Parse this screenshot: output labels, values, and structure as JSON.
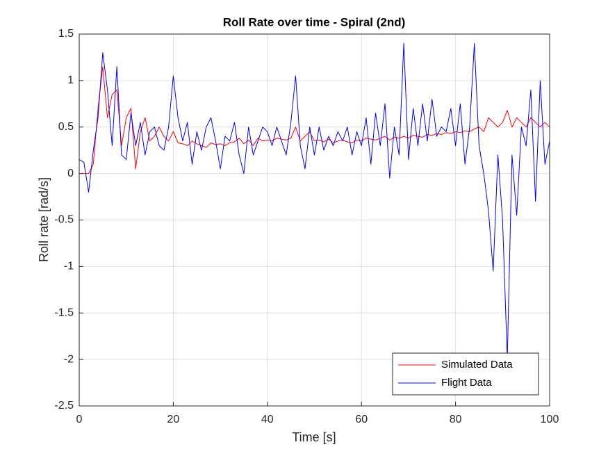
{
  "chart_data": {
    "type": "line",
    "title": "Roll Rate over time - Spiral (2nd)",
    "xlabel": "Time [s]",
    "ylabel": "Roll rate [rad/s]",
    "x": [
      0,
      1,
      2,
      3,
      4,
      5,
      6,
      7,
      8,
      9,
      10,
      11,
      12,
      13,
      14,
      15,
      16,
      17,
      18,
      19,
      20,
      21,
      22,
      23,
      24,
      25,
      26,
      27,
      28,
      29,
      30,
      31,
      32,
      33,
      34,
      35,
      36,
      37,
      38,
      39,
      40,
      41,
      42,
      43,
      44,
      45,
      46,
      47,
      48,
      49,
      50,
      51,
      52,
      53,
      54,
      55,
      56,
      57,
      58,
      59,
      60,
      61,
      62,
      63,
      64,
      65,
      66,
      67,
      68,
      69,
      70,
      71,
      72,
      73,
      74,
      75,
      76,
      77,
      78,
      79,
      80,
      81,
      82,
      83,
      84,
      85,
      86,
      87,
      88,
      89,
      90,
      91,
      92,
      93,
      94,
      95,
      96,
      97,
      98,
      99,
      100
    ],
    "series": [
      {
        "name": "Simulated Data",
        "color": "#ff0000",
        "values": [
          0,
          0,
          0,
          0.1,
          0.7,
          1.15,
          0.6,
          0.85,
          0.9,
          0.3,
          0.6,
          0.7,
          0.05,
          0.45,
          0.6,
          0.35,
          0.4,
          0.5,
          0.4,
          0.35,
          0.45,
          0.33,
          0.32,
          0.3,
          0.35,
          0.32,
          0.3,
          0.28,
          0.33,
          0.31,
          0.32,
          0.3,
          0.33,
          0.34,
          0.38,
          0.32,
          0.36,
          0.3,
          0.38,
          0.35,
          0.36,
          0.35,
          0.38,
          0.37,
          0.36,
          0.38,
          0.5,
          0.35,
          0.4,
          0.45,
          0.35,
          0.36,
          0.34,
          0.37,
          0.33,
          0.35,
          0.36,
          0.34,
          0.33,
          0.36,
          0.35,
          0.38,
          0.37,
          0.36,
          0.38,
          0.4,
          0.36,
          0.39,
          0.38,
          0.4,
          0.38,
          0.41,
          0.4,
          0.39,
          0.42,
          0.41,
          0.43,
          0.42,
          0.44,
          0.43,
          0.45,
          0.44,
          0.46,
          0.45,
          0.48,
          0.5,
          0.45,
          0.6,
          0.55,
          0.5,
          0.55,
          0.68,
          0.5,
          0.6,
          0.55,
          0.5,
          0.6,
          0.55,
          0.5,
          0.55,
          0.5
        ]
      },
      {
        "name": "Flight Data",
        "color": "#0000ff",
        "values": [
          0.15,
          0.12,
          -0.2,
          0.25,
          0.6,
          1.3,
          0.9,
          0.3,
          1.15,
          0.2,
          0.15,
          0.65,
          0.3,
          0.55,
          0.2,
          0.45,
          0.5,
          0.3,
          0.25,
          0.5,
          1.05,
          0.6,
          0.35,
          0.55,
          0.1,
          0.45,
          0.25,
          0.5,
          0.6,
          0.35,
          0.05,
          0.4,
          0.35,
          0.55,
          0.2,
          0.0,
          0.5,
          0.2,
          0.35,
          0.5,
          0.45,
          0.3,
          0.5,
          0.35,
          0.2,
          0.55,
          1.05,
          0.3,
          0.05,
          0.5,
          0.2,
          0.5,
          0.25,
          0.4,
          0.3,
          0.45,
          0.35,
          0.5,
          0.2,
          0.45,
          0.3,
          0.6,
          0.1,
          0.65,
          0.3,
          0.75,
          -0.05,
          0.5,
          0.2,
          1.4,
          0.15,
          0.7,
          0.3,
          0.75,
          0.35,
          0.8,
          0.4,
          0.5,
          0.45,
          0.7,
          0.3,
          0.75,
          0.1,
          0.5,
          1.4,
          0.3,
          0.0,
          -0.4,
          -1.05,
          0.2,
          -0.5,
          -2.0,
          0.2,
          -0.45,
          0.5,
          0.3,
          0.9,
          -0.3,
          1.0,
          0.1,
          0.35
        ]
      }
    ],
    "xlim": [
      0,
      100
    ],
    "xticks": [
      0,
      20,
      40,
      60,
      80,
      100
    ],
    "ylim": [
      -2.5,
      1.5
    ],
    "yticks": [
      -2.5,
      -2,
      -1.5,
      -1,
      -0.5,
      0,
      0.5,
      1,
      1.5
    ],
    "grid": true,
    "legend_location": "southeast"
  }
}
